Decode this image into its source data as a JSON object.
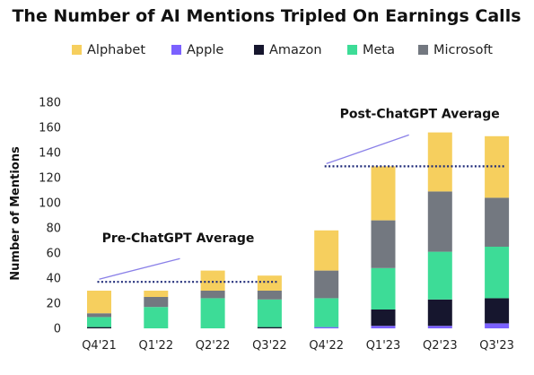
{
  "chart_data": {
    "type": "bar",
    "stacked": true,
    "title": "The Number of AI Mentions Tripled On Earnings Calls",
    "ylabel": "Number of Mentions",
    "xlabel": "",
    "ylim": [
      0,
      180
    ],
    "yticks": [
      0,
      20,
      40,
      60,
      80,
      100,
      120,
      140,
      160,
      180
    ],
    "grid": false,
    "legend_position": "top",
    "categories": [
      "Q4'21",
      "Q1'22",
      "Q2'22",
      "Q3'22",
      "Q4'22",
      "Q1'23",
      "Q2'23",
      "Q3'23"
    ],
    "series": [
      {
        "name": "Apple",
        "color": "#7B61FF",
        "values": [
          0,
          0,
          0,
          0,
          1,
          2,
          2,
          4
        ]
      },
      {
        "name": "Amazon",
        "color": "#16162E",
        "values": [
          1,
          0,
          0,
          1,
          0,
          13,
          21,
          20
        ]
      },
      {
        "name": "Meta",
        "color": "#3DDC97",
        "values": [
          8,
          17,
          24,
          22,
          23,
          33,
          38,
          41
        ]
      },
      {
        "name": "Microsoft",
        "color": "#737880",
        "values": [
          3,
          8,
          6,
          7,
          22,
          38,
          48,
          39
        ]
      },
      {
        "name": "Alphabet",
        "color": "#F6CF5E",
        "values": [
          18,
          5,
          16,
          12,
          32,
          43,
          47,
          49
        ]
      }
    ],
    "legend_order": [
      "Alphabet",
      "Apple",
      "Amazon",
      "Meta",
      "Microsoft"
    ],
    "annotations": [
      {
        "text": "Pre-ChatGPT Average",
        "value": 37,
        "from": "Q4'21",
        "to": "Q3'22"
      },
      {
        "text": "Post-ChatGPT Average",
        "value": 129,
        "from": "Q4'22",
        "to": "Q3'23"
      }
    ]
  }
}
